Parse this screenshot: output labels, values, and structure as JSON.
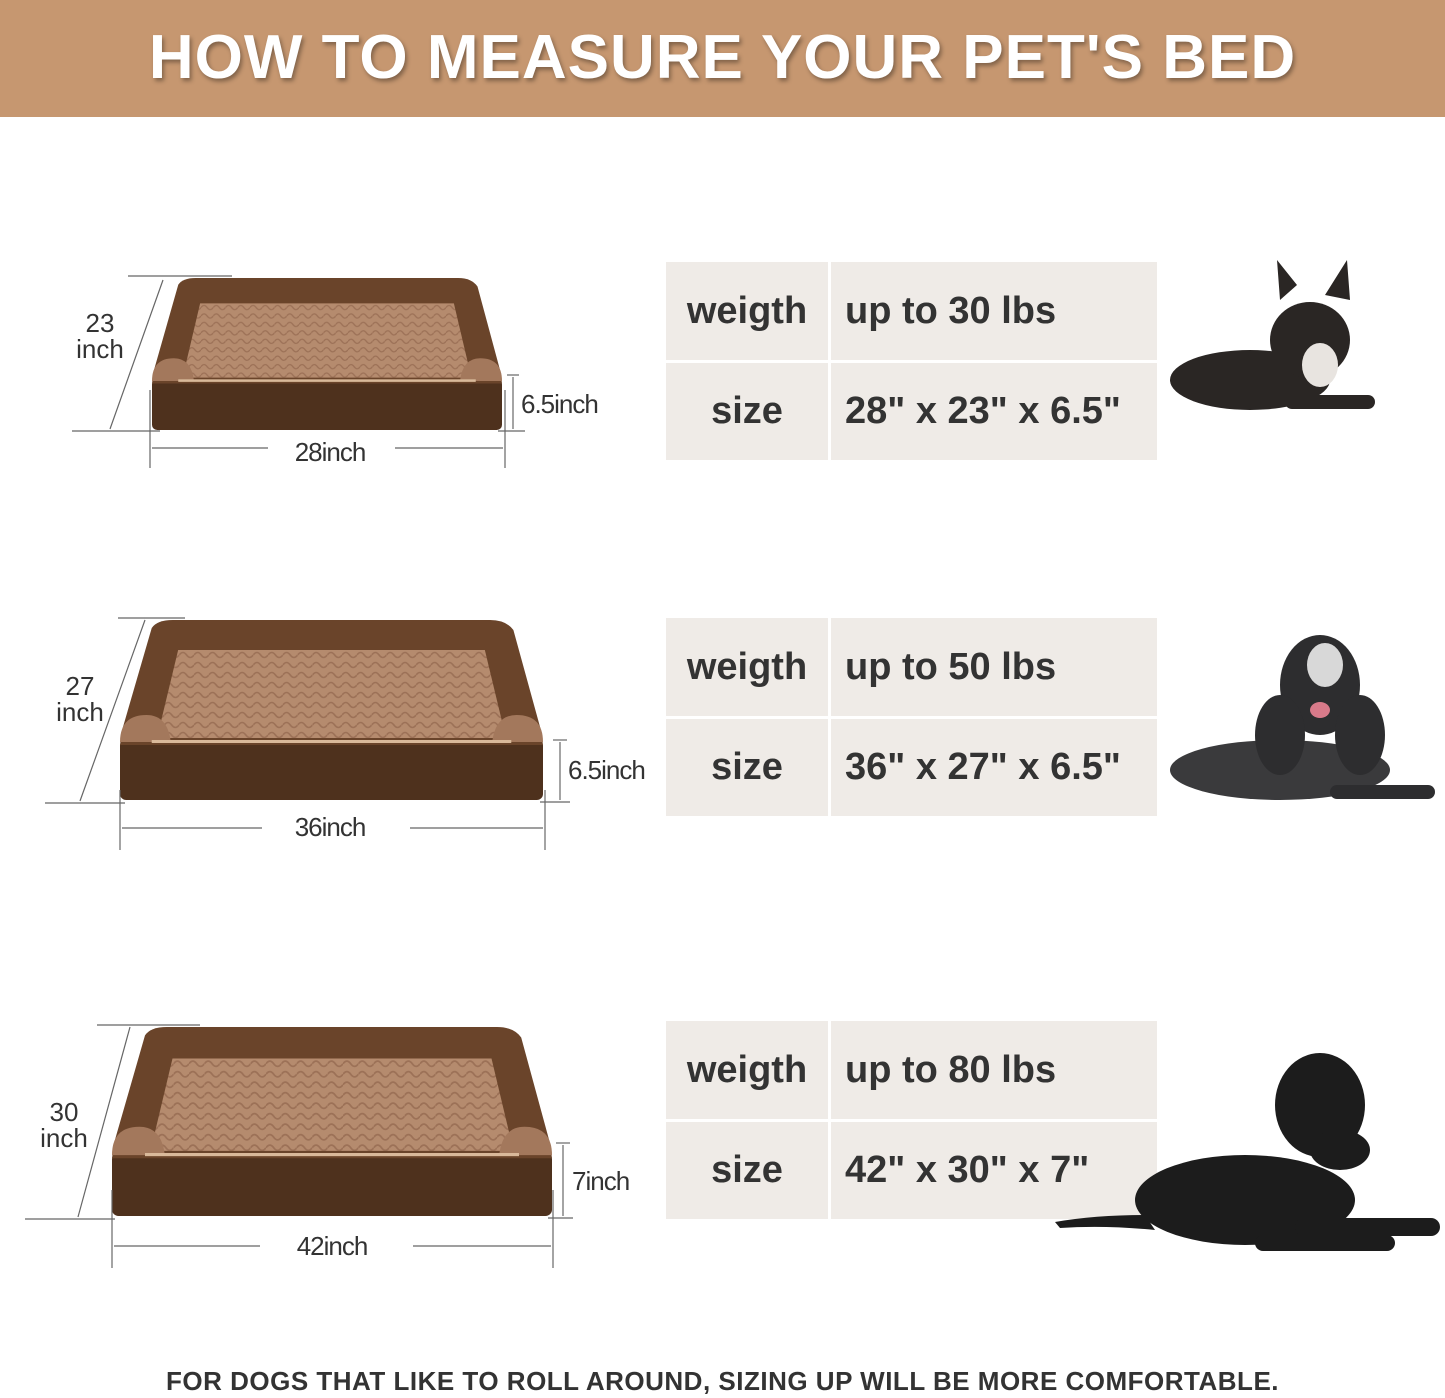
{
  "header": {
    "title": "HOW TO MEASURE YOUR PET'S BED"
  },
  "colors": {
    "header_bg": "#c69770",
    "table_bg": "#efebe7",
    "bed_frame": "#5a3a24",
    "bed_cushion": "#b08468"
  },
  "beds": [
    {
      "depth": "23",
      "depth_unit": "inch",
      "height": "6.5inch",
      "width": "28inch",
      "weight_label": "weigth",
      "weight_value": "up to 30 lbs",
      "size_label": "size",
      "size_value": "28\" x 23\" x 6.5\"",
      "dog": "french-bulldog"
    },
    {
      "depth": "27",
      "depth_unit": "inch",
      "height": "6.5inch",
      "width": "36inch",
      "weight_label": "weigth",
      "weight_value": "up to 50 lbs",
      "size_label": "size",
      "size_value": "36\" x 27\" x 6.5\"",
      "dog": "spaniel"
    },
    {
      "depth": "30",
      "depth_unit": "inch",
      "height": "7inch",
      "width": "42inch",
      "weight_label": "weigth",
      "weight_value": "up to 80 lbs",
      "size_label": "size",
      "size_value": "42\" x 30\" x 7\"",
      "dog": "labrador"
    }
  ],
  "footer": {
    "note": "FOR DOGS THAT LIKE TO ROLL AROUND, SIZING UP WILL BE MORE COMFORTABLE."
  }
}
